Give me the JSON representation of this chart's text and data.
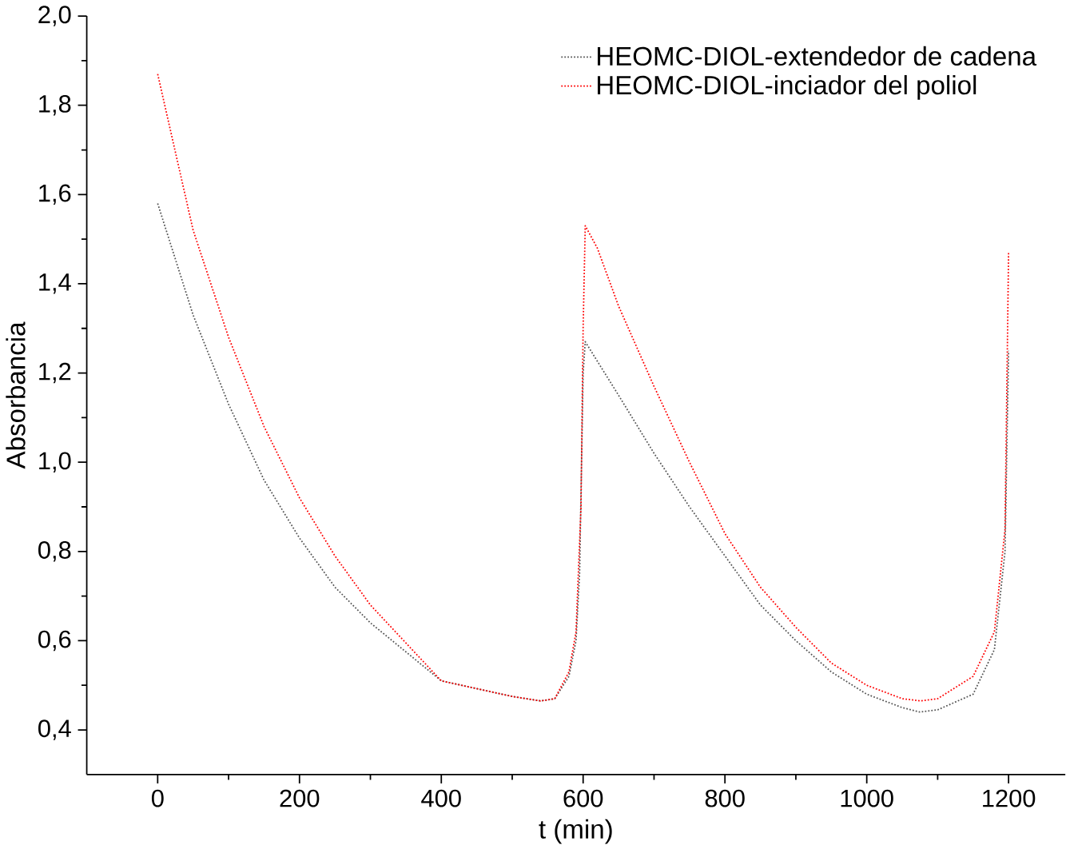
{
  "chart_data": {
    "type": "line",
    "xlabel": "t (min)",
    "ylabel": "Absorbancia",
    "xlim": [
      -100,
      1280
    ],
    "ylim": [
      0.3,
      2.0
    ],
    "xticks": [
      0,
      200,
      400,
      600,
      800,
      1000,
      1200
    ],
    "yticks": [
      {
        "value": 0.4,
        "label": "0,4"
      },
      {
        "value": 0.6,
        "label": "0,6"
      },
      {
        "value": 0.8,
        "label": "0,8"
      },
      {
        "value": 1.0,
        "label": "1,0"
      },
      {
        "value": 1.2,
        "label": "1,2"
      },
      {
        "value": 1.4,
        "label": "1,4"
      },
      {
        "value": 1.6,
        "label": "1,6"
      },
      {
        "value": 1.8,
        "label": "1,8"
      },
      {
        "value": 2.0,
        "label": "2,0"
      }
    ],
    "legend": "top right",
    "grid": false,
    "line_style": "dotted",
    "marker": "none",
    "series": [
      {
        "name": "HEOMC-DIOL-extendedor de cadena",
        "color": "#555555",
        "x": [
          0,
          50,
          100,
          150,
          200,
          250,
          300,
          400,
          500,
          540,
          560,
          580,
          590,
          595,
          600,
          603,
          650,
          700,
          750,
          800,
          850,
          900,
          950,
          1000,
          1050,
          1075,
          1100,
          1150,
          1180,
          1195,
          1200
        ],
        "values": [
          1.58,
          1.33,
          1.13,
          0.96,
          0.83,
          0.72,
          0.64,
          0.51,
          0.475,
          0.465,
          0.47,
          0.52,
          0.6,
          0.75,
          1.2,
          1.27,
          1.15,
          1.02,
          0.9,
          0.79,
          0.68,
          0.6,
          0.53,
          0.48,
          0.45,
          0.44,
          0.445,
          0.48,
          0.58,
          0.8,
          1.25
        ]
      },
      {
        "name": "HEOMC-DIOL-inciador del poliol",
        "color": "#ff0000",
        "x": [
          0,
          50,
          100,
          150,
          200,
          250,
          300,
          400,
          500,
          540,
          560,
          580,
          590,
          597,
          600,
          603,
          620,
          650,
          700,
          750,
          800,
          850,
          900,
          950,
          1000,
          1050,
          1075,
          1100,
          1150,
          1180,
          1195,
          1200
        ],
        "values": [
          1.87,
          1.52,
          1.28,
          1.08,
          0.92,
          0.79,
          0.68,
          0.51,
          0.475,
          0.465,
          0.47,
          0.53,
          0.62,
          0.9,
          1.3,
          1.53,
          1.48,
          1.35,
          1.17,
          1.0,
          0.84,
          0.72,
          0.63,
          0.55,
          0.5,
          0.47,
          0.465,
          0.47,
          0.52,
          0.62,
          0.85,
          1.47
        ]
      }
    ]
  }
}
